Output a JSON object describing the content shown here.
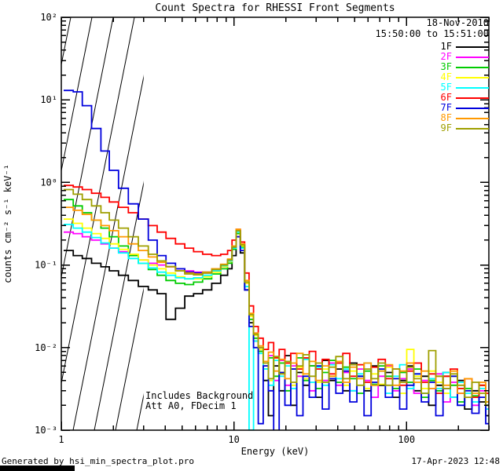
{
  "annotations": {
    "date": "18-Nov-2010",
    "time_range": "15:50:00 to 15:51:00",
    "note_line1": "Includes Background",
    "note_line2": "Att A0, FDecim 1"
  },
  "footer": {
    "left": "Generated by hsi_min_spectra_plot.pro",
    "right": "17-Apr-2023 12:48"
  },
  "chart_data": {
    "type": "line",
    "subtype": "log-log step spectra",
    "title": "Count Spectra for RHESSI Front Segments",
    "xlabel": "Energy (keV)",
    "ylabel": "counts cm⁻² s⁻¹ keV⁻¹",
    "x_scale": "log",
    "y_scale": "log",
    "xlim": [
      1,
      300
    ],
    "ylim": [
      0.001,
      100
    ],
    "grid": false,
    "legend_position": "top-right",
    "hatched_region_kev": [
      1,
      3
    ],
    "x_ticks": [
      {
        "label": "1",
        "value": 1
      },
      {
        "label": "10",
        "value": 10
      },
      {
        "label": "100",
        "value": 100
      }
    ],
    "y_ticks": [
      {
        "label": "10²",
        "value": 100
      },
      {
        "label": "10¹",
        "value": 10
      },
      {
        "label": "10⁰",
        "value": 1
      },
      {
        "label": "10⁻¹",
        "value": 0.1
      },
      {
        "label": "10⁻²",
        "value": 0.01
      },
      {
        "label": "10⁻³",
        "value": 0.001
      }
    ],
    "x": [
      1.1,
      1.25,
      1.4,
      1.6,
      1.8,
      2.0,
      2.3,
      2.6,
      3.0,
      3.4,
      3.8,
      4.3,
      4.9,
      5.5,
      6.2,
      7.0,
      7.9,
      8.9,
      9.5,
      10.0,
      10.6,
      11.2,
      11.9,
      12.6,
      13.4,
      14.3,
      15.3,
      16.4,
      17.6,
      19.0,
      20.5,
      22.2,
      24.1,
      26.2,
      28.5,
      31.1,
      34.0,
      37.2,
      40.8,
      44.8,
      49.2,
      54.1,
      59.5,
      65.4,
      71.9,
      79.1,
      87.0,
      95.7,
      105,
      116,
      128,
      141,
      155,
      171,
      188,
      207,
      228,
      251,
      276,
      300
    ],
    "series": [
      {
        "name": "1F",
        "color": "#000000",
        "values": [
          0.15,
          0.13,
          0.12,
          0.105,
          0.095,
          0.085,
          0.075,
          0.065,
          0.055,
          0.05,
          0.045,
          0.022,
          0.03,
          0.042,
          0.045,
          0.05,
          0.06,
          0.075,
          0.09,
          0.13,
          0.22,
          0.14,
          0.05,
          0.02,
          0.012,
          0.009,
          0.004,
          0.0015,
          0.006,
          0.003,
          0.008,
          0.002,
          0.005,
          0.0035,
          0.006,
          0.0025,
          0.007,
          0.004,
          0.0055,
          0.003,
          0.0065,
          0.0045,
          0.003,
          0.006,
          0.0035,
          0.005,
          0.0025,
          0.004,
          0.006,
          0.003,
          0.0045,
          0.002,
          0.0035,
          0.005,
          0.0025,
          0.004,
          0.0018,
          0.003,
          0.0022,
          0.0015
        ]
      },
      {
        "name": "2F",
        "color": "#ff00ff",
        "values": [
          0.25,
          0.24,
          0.22,
          0.2,
          0.18,
          0.16,
          0.145,
          0.13,
          0.115,
          0.105,
          0.1,
          0.095,
          0.09,
          0.085,
          0.082,
          0.08,
          0.085,
          0.095,
          0.11,
          0.16,
          0.26,
          0.17,
          0.06,
          0.025,
          0.015,
          0.01,
          0.006,
          0.008,
          0.004,
          0.007,
          0.0035,
          0.006,
          0.0045,
          0.0075,
          0.003,
          0.0055,
          0.004,
          0.0065,
          0.0035,
          0.005,
          0.003,
          0.0055,
          0.004,
          0.0025,
          0.0045,
          0.006,
          0.003,
          0.0042,
          0.0055,
          0.0028,
          0.004,
          0.0032,
          0.0048,
          0.0022,
          0.0038,
          0.0028,
          0.0042,
          0.002,
          0.003,
          0.0018
        ]
      },
      {
        "name": "3F",
        "color": "#00cc00",
        "values": [
          0.62,
          0.52,
          0.43,
          0.35,
          0.28,
          0.22,
          0.17,
          0.13,
          0.105,
          0.088,
          0.075,
          0.065,
          0.06,
          0.058,
          0.062,
          0.068,
          0.078,
          0.09,
          0.105,
          0.155,
          0.24,
          0.165,
          0.055,
          0.022,
          0.013,
          0.009,
          0.0055,
          0.0075,
          0.0045,
          0.0065,
          0.003,
          0.0055,
          0.0075,
          0.004,
          0.006,
          0.0032,
          0.005,
          0.007,
          0.0038,
          0.0058,
          0.0042,
          0.0028,
          0.0052,
          0.0036,
          0.006,
          0.0045,
          0.0032,
          0.005,
          0.0038,
          0.0055,
          0.0025,
          0.004,
          0.003,
          0.0045,
          0.0035,
          0.0022,
          0.0032,
          0.0026,
          0.0035,
          0.002
        ]
      },
      {
        "name": "4F",
        "color": "#ffff00",
        "values": [
          0.36,
          0.32,
          0.28,
          0.24,
          0.21,
          0.18,
          0.155,
          0.135,
          0.115,
          0.1,
          0.09,
          0.08,
          0.072,
          0.068,
          0.068,
          0.072,
          0.082,
          0.095,
          0.11,
          0.16,
          0.25,
          0.17,
          0.06,
          0.024,
          0.014,
          0.0095,
          0.006,
          0.004,
          0.0075,
          0.005,
          0.0065,
          0.0035,
          0.0058,
          0.0042,
          0.0068,
          0.0038,
          0.0055,
          0.0045,
          0.0065,
          0.0035,
          0.0052,
          0.0062,
          0.0032,
          0.0048,
          0.0036,
          0.0058,
          0.0042,
          0.0028,
          0.0095,
          0.0045,
          0.0032,
          0.0052,
          0.0038,
          0.0028,
          0.0045,
          0.0032,
          0.0042,
          0.0025,
          0.0035,
          0.0022
        ]
      },
      {
        "name": "5F",
        "color": "#00ffff",
        "values": [
          0.31,
          0.28,
          0.25,
          0.215,
          0.185,
          0.16,
          0.14,
          0.12,
          0.105,
          0.092,
          0.082,
          0.075,
          0.07,
          0.068,
          0.07,
          0.075,
          0.085,
          0.098,
          0.112,
          0.16,
          0.25,
          0.16,
          0.055,
          0.001,
          0.012,
          0.0085,
          0.0055,
          0.0035,
          0.007,
          0.0045,
          0.006,
          0.0032,
          0.0055,
          0.0072,
          0.0038,
          0.0058,
          0.0035,
          0.0062,
          0.0042,
          0.0055,
          0.003,
          0.0048,
          0.0065,
          0.0035,
          0.0052,
          0.0028,
          0.0045,
          0.0062,
          0.0032,
          0.0048,
          0.0028,
          0.0042,
          0.0032,
          0.005,
          0.0025,
          0.0038,
          0.0028,
          0.0022,
          0.0032,
          0.0018
        ]
      },
      {
        "name": "6F",
        "color": "#ff0000",
        "values": [
          0.92,
          0.88,
          0.82,
          0.74,
          0.66,
          0.58,
          0.5,
          0.43,
          0.36,
          0.3,
          0.25,
          0.21,
          0.18,
          0.16,
          0.145,
          0.135,
          0.13,
          0.135,
          0.15,
          0.2,
          0.27,
          0.19,
          0.08,
          0.032,
          0.018,
          0.013,
          0.0095,
          0.0115,
          0.0075,
          0.0095,
          0.0065,
          0.0085,
          0.0055,
          0.0075,
          0.009,
          0.0055,
          0.0072,
          0.0048,
          0.0065,
          0.0085,
          0.0045,
          0.0062,
          0.0038,
          0.0058,
          0.0072,
          0.0042,
          0.0055,
          0.0035,
          0.0052,
          0.0065,
          0.0038,
          0.0048,
          0.0028,
          0.0045,
          0.0055,
          0.0032,
          0.0042,
          0.0025,
          0.0035,
          0.0028
        ]
      },
      {
        "name": "7F",
        "color": "#0000dd",
        "values": [
          13,
          12.5,
          8.5,
          4.5,
          2.4,
          1.4,
          0.85,
          0.55,
          0.36,
          0.2,
          0.13,
          0.105,
          0.09,
          0.082,
          0.08,
          0.082,
          0.09,
          0.1,
          0.115,
          0.165,
          0.22,
          0.15,
          0.05,
          0.018,
          0.01,
          0.0012,
          0.006,
          0.003,
          0.0008,
          0.005,
          0.002,
          0.0055,
          0.0015,
          0.0045,
          0.0025,
          0.006,
          0.0018,
          0.0042,
          0.0028,
          0.0052,
          0.0022,
          0.0045,
          0.0015,
          0.0038,
          0.0055,
          0.0025,
          0.0042,
          0.0018,
          0.0035,
          0.0048,
          0.0022,
          0.0038,
          0.0015,
          0.0032,
          0.0045,
          0.002,
          0.003,
          0.0016,
          0.0025,
          0.0012
        ]
      },
      {
        "name": "8F",
        "color": "#ff9900",
        "values": [
          0.5,
          0.46,
          0.41,
          0.35,
          0.3,
          0.26,
          0.22,
          0.18,
          0.15,
          0.125,
          0.108,
          0.095,
          0.085,
          0.08,
          0.078,
          0.082,
          0.09,
          0.102,
          0.118,
          0.17,
          0.27,
          0.18,
          0.065,
          0.026,
          0.015,
          0.0105,
          0.0068,
          0.0088,
          0.0052,
          0.0072,
          0.0042,
          0.0065,
          0.0085,
          0.0048,
          0.0068,
          0.004,
          0.006,
          0.0045,
          0.0068,
          0.0038,
          0.0058,
          0.0042,
          0.0065,
          0.0035,
          0.0052,
          0.0062,
          0.0035,
          0.0052,
          0.0065,
          0.0038,
          0.0052,
          0.0032,
          0.0045,
          0.0035,
          0.0052,
          0.0028,
          0.0042,
          0.0028,
          0.0038,
          0.0022
        ]
      },
      {
        "name": "9F",
        "color": "#9f9f00",
        "values": [
          0.82,
          0.72,
          0.62,
          0.52,
          0.43,
          0.35,
          0.28,
          0.22,
          0.17,
          0.135,
          0.112,
          0.096,
          0.085,
          0.078,
          0.076,
          0.08,
          0.088,
          0.1,
          0.115,
          0.165,
          0.26,
          0.175,
          0.062,
          0.025,
          0.0145,
          0.01,
          0.0065,
          0.0042,
          0.0078,
          0.0048,
          0.0068,
          0.0038,
          0.006,
          0.0082,
          0.0045,
          0.0065,
          0.0038,
          0.0058,
          0.0078,
          0.0042,
          0.0062,
          0.0035,
          0.0055,
          0.0042,
          0.0065,
          0.0035,
          0.0055,
          0.0038,
          0.0058,
          0.0042,
          0.0028,
          0.0092,
          0.0045,
          0.0032,
          0.0048,
          0.0035,
          0.0025,
          0.0038,
          0.0028,
          0.002
        ]
      }
    ]
  }
}
